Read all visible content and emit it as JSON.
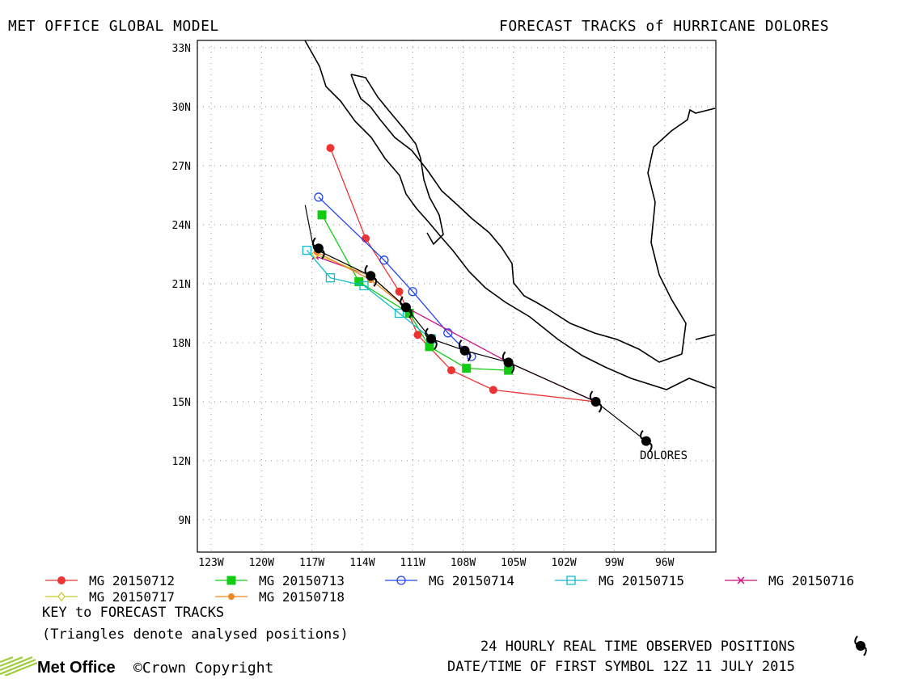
{
  "header": {
    "left_title": "MET OFFICE GLOBAL MODEL",
    "right_title": "FORECAST TRACKS of HURRICANE DOLORES"
  },
  "map": {
    "lon_labels": [
      "123W",
      "120W",
      "117W",
      "114W",
      "111W",
      "108W",
      "105W",
      "102W",
      "99W",
      "96W"
    ],
    "lat_labels": [
      "33N",
      "30N",
      "27N",
      "24N",
      "21N",
      "18N",
      "15N",
      "12N",
      "9N"
    ],
    "storm_label": "DOLORES"
  },
  "chart_data": {
    "type": "map-tracks",
    "lon_range": [
      -124,
      -93
    ],
    "lat_range": [
      7,
      33
    ],
    "grid": true,
    "observed_track": [
      [
        -97.1,
        13.0
      ],
      [
        -100.1,
        15.0
      ],
      [
        -105.3,
        17.0
      ],
      [
        -107.9,
        17.6
      ],
      [
        -109.9,
        18.2
      ],
      [
        -111.4,
        19.8
      ],
      [
        -113.5,
        21.4
      ],
      [
        -116.9,
        22.8
      ],
      [
        -117.4,
        25.0
      ]
    ],
    "observed_symbols": [
      [
        -97.1,
        13.0
      ],
      [
        -100.1,
        15.0
      ],
      [
        -105.3,
        17.0
      ],
      [
        -107.9,
        17.6
      ],
      [
        -109.9,
        18.2
      ],
      [
        -111.4,
        19.8
      ],
      [
        -113.5,
        21.4
      ],
      [
        -116.6,
        22.8
      ]
    ],
    "series": [
      {
        "name": "MG 20150712",
        "color": "#ee3333",
        "marker": "dot",
        "points": [
          [
            -100.1,
            15.0
          ],
          [
            -106.2,
            15.6
          ],
          [
            -108.7,
            16.6
          ],
          [
            -110.7,
            18.4
          ],
          [
            -111.8,
            20.6
          ],
          [
            -113.8,
            23.3
          ],
          [
            -115.9,
            27.9
          ]
        ]
      },
      {
        "name": "MG 20150713",
        "color": "#11cc11",
        "marker": "square",
        "points": [
          [
            -105.3,
            16.6
          ],
          [
            -107.8,
            16.7
          ],
          [
            -110.0,
            17.8
          ],
          [
            -111.2,
            19.5
          ],
          [
            -114.2,
            21.1
          ],
          [
            -116.4,
            24.5
          ]
        ]
      },
      {
        "name": "MG 20150714",
        "color": "#2244ee",
        "marker": "circle",
        "points": [
          [
            -107.5,
            17.3
          ],
          [
            -108.9,
            18.5
          ],
          [
            -111.0,
            20.6
          ],
          [
            -112.7,
            22.2
          ],
          [
            -116.6,
            25.4
          ]
        ]
      },
      {
        "name": "MG 20150715",
        "color": "#11bbcc",
        "marker": "square-open",
        "points": [
          [
            -109.9,
            18.2
          ],
          [
            -111.8,
            19.5
          ],
          [
            -113.9,
            20.9
          ],
          [
            -115.9,
            21.3
          ],
          [
            -117.3,
            22.7
          ]
        ]
      },
      {
        "name": "MG 20150716",
        "color": "#cc1188",
        "marker": "x",
        "points": [
          [
            -100.1,
            15.0
          ],
          [
            -105.3,
            17.0
          ],
          [
            -111.4,
            19.8
          ],
          [
            -113.5,
            21.4
          ],
          [
            -116.8,
            22.4
          ]
        ]
      },
      {
        "name": "MG 20150717",
        "color": "#cccc33",
        "marker": "diamond",
        "points": [
          [
            -111.4,
            19.8
          ],
          [
            -113.5,
            21.4
          ],
          [
            -116.8,
            22.5
          ]
        ]
      },
      {
        "name": "MG 20150718",
        "color": "#ee8822",
        "marker": "dot-small",
        "points": [
          [
            -111.4,
            19.8
          ],
          [
            -113.5,
            21.2
          ],
          [
            -116.7,
            22.6
          ]
        ]
      }
    ]
  },
  "legend": {
    "items": [
      {
        "label": "MG 20150712"
      },
      {
        "label": "MG 20150713"
      },
      {
        "label": "MG 20150714"
      },
      {
        "label": "MG 20150715"
      },
      {
        "label": "MG 20150716"
      },
      {
        "label": "MG 20150717"
      },
      {
        "label": "MG 20150718"
      }
    ],
    "key_title": "KEY to FORECAST TRACKS",
    "key_note": "(Triangles denote analysed positions)"
  },
  "footer": {
    "observed_note": "24 HOURLY REAL TIME OBSERVED POSITIONS",
    "datetime_note": "DATE/TIME OF FIRST SYMBOL 12Z 11 JULY 2015",
    "logo_text": "Met Office",
    "copyright": "Crown Copyright"
  }
}
